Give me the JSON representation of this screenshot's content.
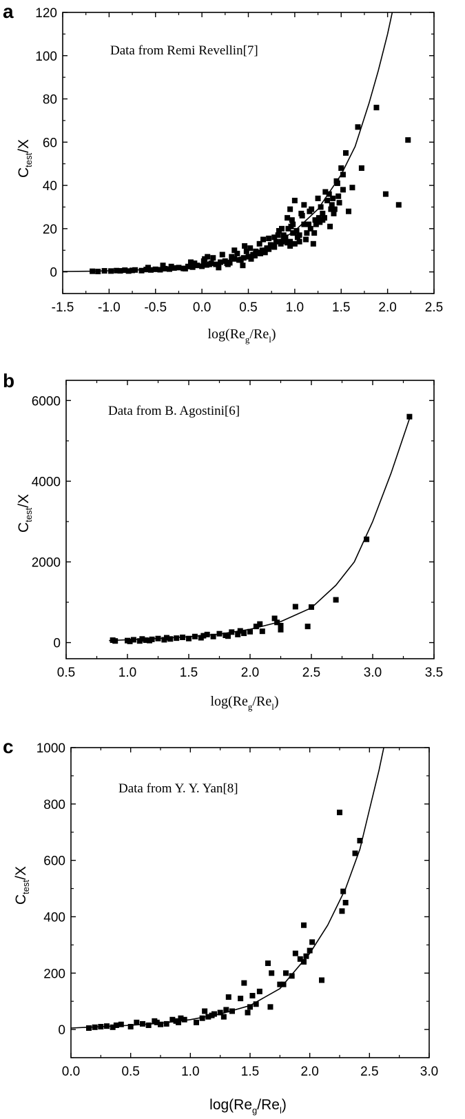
{
  "panels": [
    {
      "letter": "a",
      "annotation": "Data from Remi Revellin[7]",
      "ylabel": {
        "main": "C",
        "sub": "test",
        "rest": "/X"
      },
      "xlabel": {
        "pre": "log(Re",
        "sub1": "g",
        "mid": "/Re",
        "sub2": "l",
        "post": ")"
      }
    },
    {
      "letter": "b",
      "annotation": "Data from B. Agostini[6]",
      "ylabel": {
        "main": "C",
        "sub": "test",
        "rest": "/X"
      },
      "xlabel": {
        "pre": "log(Re",
        "sub1": "g",
        "mid": "/Re",
        "sub2": "l",
        "post": ")"
      }
    },
    {
      "letter": "c",
      "annotation": "Data from Y. Y. Yan[8]",
      "ylabel": {
        "main": "C",
        "sub": "test",
        "rest": "/X"
      },
      "xlabel": {
        "pre": "log(Re",
        "sub1": "g",
        "mid": "/Re",
        "sub2": "l",
        "post": ")"
      }
    }
  ],
  "chart_data": [
    {
      "type": "scatter",
      "title": "",
      "xlabel": "log(Reg/Rel)",
      "ylabel": "Ctest/X",
      "annotation": "Data from Remi Revellin[7]",
      "xlim": [
        -1.5,
        2.5
      ],
      "ylim": [
        -10,
        120
      ],
      "xticks": [
        -1.5,
        -1.0,
        -0.5,
        0.0,
        0.5,
        1.0,
        1.5,
        2.0,
        2.5
      ],
      "xtick_labels": [
        "-1.5",
        "-1.0",
        "-0.5",
        "0.0",
        "0.5",
        "1.0",
        "1.5",
        "2.0",
        "2.5"
      ],
      "yticks": [
        0,
        20,
        40,
        60,
        80,
        100,
        120
      ],
      "ytick_labels": [
        "0",
        "20",
        "40",
        "60",
        "80",
        "100",
        "120"
      ],
      "series": [
        {
          "kind": "points",
          "marker": "square",
          "x": [
            -1.18,
            -1.12,
            -1.05,
            -0.98,
            -0.92,
            -0.88,
            -0.83,
            -0.79,
            -0.75,
            -0.72,
            -0.65,
            -0.6,
            -0.55,
            -0.5,
            -0.45,
            -0.4,
            -0.35,
            -0.3,
            -0.25,
            -0.2,
            -0.15,
            -0.1,
            -0.05,
            0.0,
            0.05,
            0.1,
            0.15,
            0.2,
            0.25,
            0.3,
            0.35,
            0.4,
            0.45,
            0.5,
            0.55,
            0.6,
            0.65,
            0.7,
            0.75,
            0.8,
            0.85,
            0.9,
            0.95,
            -0.58,
            -0.42,
            -0.33,
            -0.18,
            -0.08,
            0.02,
            0.08,
            0.12,
            0.18,
            0.28,
            0.32,
            0.38,
            0.42,
            0.48,
            0.52,
            0.57,
            0.62,
            0.68,
            0.72,
            0.78,
            0.82,
            0.88,
            0.92,
            0.98,
            0.03,
            0.22,
            0.35,
            0.46,
            0.58,
            0.66,
            0.74,
            0.83,
            0.9,
            0.96,
            -0.12,
            0.06,
            0.27,
            0.44,
            0.53,
            0.63,
            0.72,
            0.86,
            0.93,
            0.95,
            0.97,
            1.0,
            1.02,
            1.05,
            1.08,
            1.1,
            1.13,
            1.15,
            1.18,
            1.2,
            1.22,
            1.25,
            1.28,
            1.3,
            1.33,
            1.35,
            1.38,
            1.4,
            1.42,
            1.45,
            1.47,
            1.5,
            1.52,
            1.55,
            1.58,
            1.62,
            1.68,
            1.72,
            1.88,
            1.98,
            2.12,
            2.22,
            1.0,
            1.05,
            1.12,
            1.17,
            1.23,
            1.32,
            1.43,
            1.48,
            1.52,
            0.92,
            0.98,
            1.07,
            1.16,
            1.27,
            1.37,
            1.41,
            0.88,
            0.95,
            1.03,
            1.21,
            1.3,
            1.39,
            1.46,
            0.78,
            0.86,
            0.99,
            1.1,
            1.26
          ],
          "y": [
            0.3,
            0.2,
            0.5,
            0.4,
            0.6,
            0.5,
            0.8,
            0.4,
            0.7,
            0.9,
            0.6,
            1.1,
            0.9,
            1.2,
            1.0,
            1.5,
            1.3,
            1.8,
            2.0,
            1.6,
            2.5,
            2.2,
            3.0,
            2.6,
            3.2,
            4.0,
            3.5,
            4.5,
            5.0,
            4.2,
            6.0,
            5.5,
            6.5,
            7.0,
            8.0,
            9.0,
            10.0,
            11.0,
            12.0,
            14.0,
            13.0,
            15.0,
            14.0,
            2.0,
            3.0,
            2.5,
            1.5,
            4.0,
            5.0,
            3.5,
            6.5,
            2.0,
            3.5,
            7.0,
            8.5,
            5.5,
            9.5,
            11.0,
            7.5,
            13.0,
            9.0,
            15.5,
            11.5,
            17.0,
            14.5,
            13.5,
            18.0,
            6.0,
            8.0,
            10.0,
            12.0,
            9.5,
            15.0,
            12.5,
            19.0,
            16.0,
            21.0,
            4.5,
            7.0,
            4.0,
            3.0,
            6.0,
            8.5,
            10.5,
            14.0,
            20.0,
            29.0,
            24.0,
            33.0,
            19.0,
            14.0,
            26.0,
            31.0,
            18.0,
            22.0,
            29.0,
            13.0,
            24.0,
            34.0,
            30.0,
            27.0,
            37.0,
            33.0,
            21.0,
            31.0,
            27.0,
            42.0,
            35.0,
            48.0,
            45.0,
            55.0,
            28.0,
            39.0,
            67.0,
            48.0,
            76.0,
            36.0,
            31.0,
            61.0,
            13.0,
            17.0,
            15.0,
            20.0,
            22.0,
            25.0,
            29.0,
            32.0,
            38.0,
            25.0,
            22.0,
            27.0,
            28.0,
            23.0,
            36.0,
            34.0,
            17.0,
            12.0,
            16.0,
            18.0,
            24.0,
            29.0,
            41.0,
            16.0,
            20.0,
            18.0,
            22.0,
            25.0
          ]
        },
        {
          "kind": "fit-line",
          "x": [
            -1.5,
            -1.25,
            -1.0,
            -0.75,
            -0.5,
            -0.25,
            0.0,
            0.25,
            0.5,
            0.75,
            1.0,
            1.25,
            1.5,
            1.65,
            1.8,
            1.9,
            2.0,
            2.05
          ],
          "y": [
            0.2,
            0.3,
            0.5,
            0.8,
            1.3,
            2.0,
            3.2,
            5.0,
            7.8,
            12.0,
            19.0,
            29.0,
            45.0,
            58.0,
            78.0,
            93.0,
            110.0,
            120.0
          ]
        }
      ]
    },
    {
      "type": "scatter",
      "title": "",
      "xlabel": "log(Reg/Rel)",
      "ylabel": "Ctest/X",
      "annotation": "Data from B. Agostini[6]",
      "xlim": [
        0.5,
        3.5
      ],
      "ylim": [
        -400,
        6500
      ],
      "xticks": [
        0.5,
        1.0,
        1.5,
        2.0,
        2.5,
        3.0,
        3.5
      ],
      "xtick_labels": [
        "0.5",
        "1.0",
        "1.5",
        "2.0",
        "2.5",
        "3.0",
        "3.5"
      ],
      "yticks": [
        0,
        2000,
        4000,
        6000
      ],
      "ytick_labels": [
        "0",
        "2000",
        "4000",
        "6000"
      ],
      "series": [
        {
          "kind": "points",
          "marker": "square",
          "x": [
            0.88,
            0.9,
            1.0,
            1.02,
            1.05,
            1.1,
            1.12,
            1.15,
            1.18,
            1.2,
            1.25,
            1.3,
            1.32,
            1.35,
            1.4,
            1.45,
            1.5,
            1.55,
            1.6,
            1.62,
            1.65,
            1.7,
            1.75,
            1.8,
            1.82,
            1.85,
            1.9,
            1.92,
            1.95,
            2.0,
            2.05,
            2.08,
            2.1,
            2.2,
            2.22,
            2.25,
            2.25,
            2.37,
            2.47,
            2.5,
            2.7,
            2.95,
            3.3
          ],
          "y": [
            60,
            40,
            50,
            30,
            70,
            40,
            90,
            60,
            50,
            80,
            100,
            70,
            120,
            90,
            110,
            130,
            100,
            150,
            120,
            170,
            200,
            150,
            220,
            180,
            160,
            260,
            200,
            290,
            230,
            270,
            400,
            460,
            280,
            600,
            500,
            420,
            320,
            890,
            400,
            880,
            1060,
            2560,
            5600
          ]
        },
        {
          "kind": "fit-line",
          "x": [
            0.85,
            1.0,
            1.25,
            1.5,
            1.75,
            2.0,
            2.25,
            2.5,
            2.7,
            2.85,
            3.0,
            3.15,
            3.3
          ],
          "y": [
            50,
            70,
            100,
            145,
            210,
            330,
            520,
            860,
            1420,
            2000,
            3000,
            4200,
            5550
          ]
        }
      ]
    },
    {
      "type": "scatter",
      "title": "",
      "xlabel": "log(Reg/Rel)",
      "ylabel": "Ctest/X",
      "annotation": "Data from Y. Y. Yan[8]",
      "xlim": [
        0.0,
        3.0
      ],
      "ylim": [
        -100,
        1000
      ],
      "xticks": [
        0.0,
        0.5,
        1.0,
        1.5,
        2.0,
        2.5,
        3.0
      ],
      "xtick_labels": [
        "0.0",
        "0.5",
        "1.0",
        "1.5",
        "2.0",
        "2.5",
        "3.0"
      ],
      "yticks": [
        0,
        200,
        400,
        600,
        800,
        1000
      ],
      "ytick_labels": [
        "0",
        "200",
        "400",
        "600",
        "800",
        "1000"
      ],
      "series": [
        {
          "kind": "points",
          "marker": "square",
          "x": [
            0.15,
            0.2,
            0.25,
            0.3,
            0.35,
            0.38,
            0.42,
            0.5,
            0.55,
            0.6,
            0.65,
            0.7,
            0.72,
            0.75,
            0.8,
            0.85,
            0.88,
            0.9,
            0.92,
            0.95,
            1.05,
            1.1,
            1.12,
            1.15,
            1.18,
            1.2,
            1.25,
            1.28,
            1.3,
            1.32,
            1.35,
            1.42,
            1.45,
            1.48,
            1.5,
            1.52,
            1.55,
            1.58,
            1.65,
            1.67,
            1.68,
            1.75,
            1.78,
            1.8,
            1.85,
            1.88,
            1.92,
            1.95,
            1.95,
            1.97,
            2.0,
            2.02,
            2.1,
            2.25,
            2.27,
            2.28,
            2.3,
            2.38,
            2.42
          ],
          "y": [
            5,
            8,
            10,
            12,
            8,
            15,
            18,
            10,
            25,
            20,
            15,
            30,
            25,
            18,
            20,
            35,
            30,
            25,
            40,
            35,
            25,
            40,
            65,
            45,
            50,
            55,
            60,
            45,
            70,
            115,
            65,
            110,
            165,
            60,
            80,
            120,
            90,
            135,
            235,
            80,
            200,
            160,
            160,
            200,
            190,
            270,
            250,
            240,
            370,
            260,
            280,
            310,
            175,
            770,
            420,
            490,
            450,
            625,
            670
          ]
        },
        {
          "kind": "fit-line",
          "x": [
            0.0,
            0.25,
            0.5,
            0.75,
            1.0,
            1.25,
            1.5,
            1.75,
            2.0,
            2.15,
            2.3,
            2.42,
            2.5,
            2.58,
            2.62
          ],
          "y": [
            5,
            10,
            15,
            22,
            35,
            55,
            85,
            145,
            270,
            370,
            500,
            640,
            780,
            920,
            1000
          ]
        }
      ]
    }
  ]
}
